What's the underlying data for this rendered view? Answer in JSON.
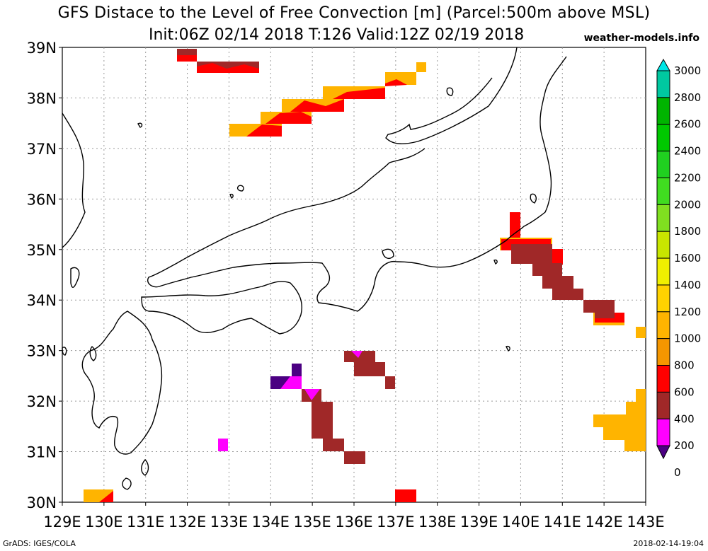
{
  "header": {
    "title": "GFS Distace to the Level of Free Convection [m] (Parcel:500m above MSL)",
    "subtitle": "Init:06Z 02/14 2018 T:126 Valid:12Z 02/19 2018",
    "brand": "weather-models.info"
  },
  "footer": {
    "left": "GrADS: IGES/COLA",
    "right": "2018-02-14-19:04"
  },
  "map": {
    "lon_labels": [
      "129E",
      "130E",
      "131E",
      "132E",
      "133E",
      "134E",
      "135E",
      "136E",
      "137E",
      "138E",
      "139E",
      "140E",
      "141E",
      "142E",
      "143E"
    ],
    "lat_labels": [
      "39N",
      "38N",
      "37N",
      "36N",
      "35N",
      "34N",
      "33N",
      "32N",
      "31N",
      "30N"
    ],
    "lon_range": [
      129,
      143
    ],
    "lat_range": [
      30,
      39
    ],
    "grid": true
  },
  "colorbar": {
    "labels": [
      "3000",
      "2800",
      "2600",
      "2400",
      "2200",
      "2000",
      "1800",
      "1600",
      "1400",
      "1200",
      "1000",
      "800",
      "600",
      "400",
      "200",
      "0"
    ],
    "colors": [
      "#00e6e6",
      "#00c8a0",
      "#00b400",
      "#00c800",
      "#20d020",
      "#40dc20",
      "#80e020",
      "#c8e600",
      "#f0f000",
      "#ffd200",
      "#ffb400",
      "#f59600",
      "#ff0000",
      "#a02828",
      "#ff00ff",
      "#4b0082"
    ]
  },
  "legend_key": {
    "dark_red": "#a02828",
    "red": "#ff0000",
    "orange": "#ffb400",
    "magenta": "#ff00ff",
    "indigo": "#4b0082"
  }
}
